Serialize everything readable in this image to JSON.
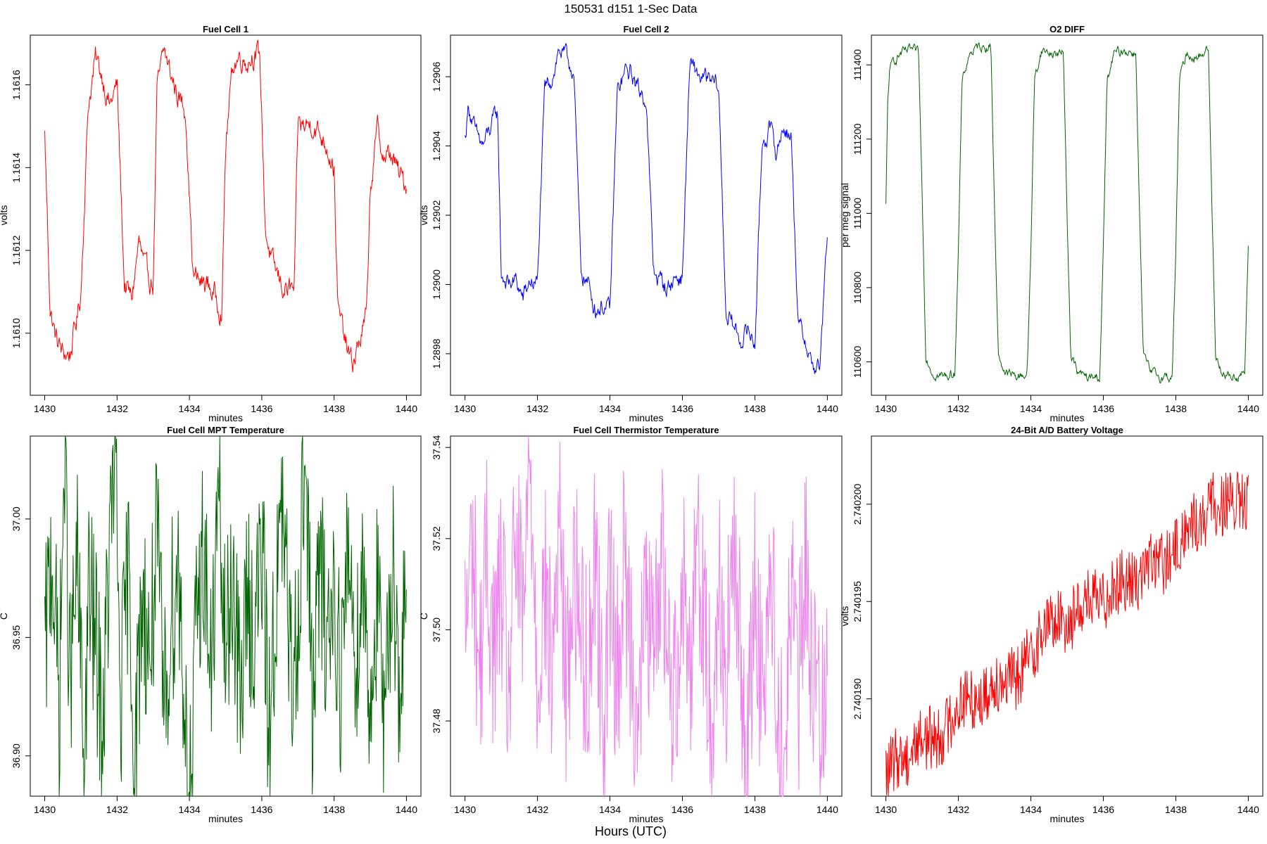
{
  "figure": {
    "title": "150531   d151   1-Sec Data",
    "xlabel": "Hours (UTC)"
  },
  "chart_data": [
    {
      "type": "line",
      "title": "Fuel Cell 1",
      "xlabel": "minutes",
      "ylabel": "volts",
      "color": "#ff0000",
      "xlim": [
        1429.6,
        1440.4
      ],
      "ylim": [
        1.16085,
        1.16172
      ],
      "xticks": [
        1430,
        1432,
        1434,
        1436,
        1438,
        1440
      ],
      "xtick_labels": [
        "1430",
        "1432",
        "1434",
        "1436",
        "1438",
        "1440"
      ],
      "yticks": [
        1.161,
        1.1612,
        1.1614,
        1.1616
      ],
      "ytick_labels": [
        "1.1610",
        "1.1612",
        "1.1614",
        "1.1616"
      ],
      "series": [
        {
          "x": [
            1430.0,
            1430.15,
            1430.3,
            1430.5,
            1430.7,
            1430.9,
            1431.0,
            1431.2,
            1431.4,
            1431.6,
            1431.8,
            1432.0,
            1432.2,
            1432.4,
            1432.6,
            1432.8,
            1433.0,
            1433.1,
            1433.3,
            1433.5,
            1433.7,
            1433.9,
            1434.1,
            1434.3,
            1434.5,
            1434.7,
            1434.9,
            1435.0,
            1435.2,
            1435.4,
            1435.6,
            1435.8,
            1435.95,
            1436.1,
            1436.3,
            1436.6,
            1436.9,
            1437.0,
            1437.2,
            1437.4,
            1437.6,
            1437.8,
            1438.0,
            1438.1,
            1438.3,
            1438.5,
            1438.7,
            1438.9,
            1439.0,
            1439.2,
            1439.4,
            1439.6,
            1439.8,
            1440.0
          ],
          "y": [
            1.16148,
            1.16106,
            1.16099,
            1.16095,
            1.16095,
            1.16104,
            1.1611,
            1.16155,
            1.16166,
            1.16162,
            1.16155,
            1.1616,
            1.16112,
            1.16108,
            1.16122,
            1.16114,
            1.16112,
            1.16158,
            1.16168,
            1.16162,
            1.16157,
            1.16154,
            1.16114,
            1.16112,
            1.16112,
            1.16109,
            1.16106,
            1.16145,
            1.16165,
            1.16167,
            1.16166,
            1.16168,
            1.16166,
            1.16125,
            1.16116,
            1.16111,
            1.1611,
            1.1615,
            1.1615,
            1.16151,
            1.16148,
            1.16146,
            1.1614,
            1.16106,
            1.16098,
            1.16092,
            1.16098,
            1.16104,
            1.16135,
            1.16149,
            1.16142,
            1.16143,
            1.16138,
            1.16136
          ]
        }
      ]
    },
    {
      "type": "line",
      "title": "Fuel Cell 2",
      "xlabel": "minutes",
      "ylabel": "volts",
      "color": "#0000ff",
      "xlim": [
        1429.6,
        1440.4
      ],
      "ylim": [
        1.28968,
        1.29072
      ],
      "xticks": [
        1430,
        1432,
        1434,
        1436,
        1438,
        1440
      ],
      "xtick_labels": [
        "1430",
        "1432",
        "1434",
        "1436",
        "1438",
        "1440"
      ],
      "yticks": [
        1.2898,
        1.29,
        1.2902,
        1.2904,
        1.2906
      ],
      "ytick_labels": [
        "1.2898",
        "1.2900",
        "1.2902",
        "1.2904",
        "1.2906"
      ],
      "series": [
        {
          "x": [
            1430.0,
            1430.1,
            1430.3,
            1430.5,
            1430.7,
            1430.9,
            1431.0,
            1431.2,
            1431.4,
            1431.6,
            1431.8,
            1432.0,
            1432.2,
            1432.4,
            1432.6,
            1432.8,
            1433.0,
            1433.2,
            1433.4,
            1433.6,
            1433.8,
            1434.0,
            1434.2,
            1434.4,
            1434.6,
            1434.8,
            1435.0,
            1435.2,
            1435.4,
            1435.6,
            1435.8,
            1436.0,
            1436.2,
            1436.4,
            1436.6,
            1436.8,
            1437.0,
            1437.2,
            1437.4,
            1437.6,
            1437.8,
            1438.0,
            1438.2,
            1438.4,
            1438.6,
            1438.8,
            1439.0,
            1439.2,
            1439.4,
            1439.6,
            1439.8,
            1440.0
          ],
          "y": [
            1.29042,
            1.29052,
            1.29043,
            1.2904,
            1.29045,
            1.2905,
            1.29003,
            1.29,
            1.29001,
            1.28996,
            1.29001,
            1.29,
            1.29056,
            1.2906,
            1.29068,
            1.29065,
            1.29062,
            1.29004,
            1.29,
            1.28993,
            1.28994,
            1.28992,
            1.29055,
            1.29061,
            1.29061,
            1.29056,
            1.29054,
            1.29004,
            1.29001,
            1.28999,
            1.29002,
            1.29002,
            1.29063,
            1.29061,
            1.29059,
            1.29058,
            1.29057,
            1.28992,
            1.28988,
            1.28984,
            1.28987,
            1.28983,
            1.29041,
            1.29045,
            1.29038,
            1.29046,
            1.29043,
            1.28988,
            1.28984,
            1.28976,
            1.28976,
            1.29015
          ]
        }
      ]
    },
    {
      "type": "line",
      "title": "O2 DIFF",
      "xlabel": "minutes",
      "ylabel": "per meg signal",
      "color": "#006400",
      "xlim": [
        1429.6,
        1440.4
      ],
      "ylim": [
        110510,
        111480
      ],
      "xticks": [
        1430,
        1432,
        1434,
        1436,
        1438,
        1440
      ],
      "xtick_labels": [
        "1430",
        "1432",
        "1434",
        "1436",
        "1438",
        "1440"
      ],
      "yticks": [
        110600,
        110800,
        111000,
        111200,
        111400
      ],
      "ytick_labels": [
        "110600",
        "110800",
        "111000",
        "111200",
        "111400"
      ],
      "series": [
        {
          "x": [
            1430.0,
            1430.05,
            1430.1,
            1430.2,
            1430.4,
            1430.7,
            1430.9,
            1431.0,
            1431.1,
            1431.3,
            1431.6,
            1431.9,
            1432.0,
            1432.1,
            1432.3,
            1432.6,
            1432.9,
            1433.0,
            1433.1,
            1433.3,
            1433.6,
            1433.9,
            1434.0,
            1434.1,
            1434.3,
            1434.6,
            1434.9,
            1435.0,
            1435.1,
            1435.3,
            1435.6,
            1435.9,
            1436.0,
            1436.1,
            1436.3,
            1436.6,
            1436.9,
            1437.0,
            1437.1,
            1437.3,
            1437.6,
            1437.9,
            1438.0,
            1438.1,
            1438.3,
            1438.6,
            1438.9,
            1439.0,
            1439.1,
            1439.3,
            1439.6,
            1439.9,
            1440.0
          ],
          "y": [
            111020,
            111300,
            111380,
            111410,
            111430,
            111440,
            111430,
            111050,
            110620,
            110570,
            110560,
            110570,
            110900,
            111350,
            111430,
            111450,
            111450,
            111000,
            110620,
            110570,
            110560,
            110570,
            110900,
            111360,
            111440,
            111430,
            111430,
            111000,
            110620,
            110570,
            110555,
            110560,
            110900,
            111350,
            111430,
            111440,
            111430,
            111000,
            110620,
            110570,
            110560,
            110560,
            110900,
            111360,
            111430,
            111420,
            111445,
            111000,
            110620,
            110570,
            110560,
            110570,
            110900
          ]
        }
      ]
    },
    {
      "type": "line",
      "title": "Fuel Cell MPT Temperature",
      "xlabel": "minutes",
      "ylabel": "C",
      "color": "#006400",
      "xlim": [
        1429.6,
        1440.4
      ],
      "ylim": [
        36.883,
        37.035
      ],
      "xticks": [
        1430,
        1432,
        1434,
        1436,
        1438,
        1440
      ],
      "xtick_labels": [
        "1430",
        "1432",
        "1434",
        "1436",
        "1438",
        "1440"
      ],
      "yticks": [
        36.9,
        36.95,
        37.0
      ],
      "ytick_labels": [
        "36.90",
        "36.95",
        "37.00"
      ],
      "series": [
        {
          "x": [
            1430.0,
            1430.2,
            1430.4,
            1430.55,
            1430.7,
            1430.9,
            1431.1,
            1431.2,
            1431.4,
            1431.6,
            1431.8,
            1431.95,
            1432.1,
            1432.3,
            1432.5,
            1432.7,
            1432.9,
            1433.1,
            1433.3,
            1433.5,
            1433.7,
            1433.9,
            1434.05,
            1434.2,
            1434.4,
            1434.6,
            1434.8,
            1435.0,
            1435.2,
            1435.4,
            1435.6,
            1435.8,
            1436.0,
            1436.2,
            1436.4,
            1436.6,
            1436.8,
            1437.0,
            1437.2,
            1437.4,
            1437.6,
            1437.8,
            1438.0,
            1438.2,
            1438.4,
            1438.6,
            1438.8,
            1439.0,
            1439.2,
            1439.4,
            1439.6,
            1439.8,
            1440.0
          ],
          "y": [
            36.94,
            36.99,
            36.92,
            37.03,
            36.93,
            36.98,
            36.89,
            36.97,
            36.95,
            36.91,
            36.99,
            37.03,
            36.92,
            36.98,
            36.9,
            36.97,
            36.94,
            36.99,
            36.92,
            36.96,
            36.98,
            36.91,
            36.88,
            36.96,
            36.99,
            36.93,
            37.01,
            36.94,
            36.98,
            36.92,
            36.97,
            36.95,
            36.99,
            36.91,
            36.97,
            37.0,
            36.93,
            36.96,
            37.03,
            36.92,
            36.98,
            36.95,
            36.97,
            36.93,
            36.99,
            36.94,
            36.98,
            36.92,
            36.97,
            36.9,
            36.99,
            36.93,
            36.96
          ]
        }
      ]
    },
    {
      "type": "line",
      "title": "Fuel Cell Thermistor Temperature",
      "xlabel": "minutes",
      "ylabel": "C",
      "color": "#ee82ee",
      "xlim": [
        1429.6,
        1440.4
      ],
      "ylim": [
        37.4635,
        37.5425
      ],
      "xticks": [
        1430,
        1432,
        1434,
        1436,
        1438,
        1440
      ],
      "xtick_labels": [
        "1430",
        "1432",
        "1434",
        "1436",
        "1438",
        "1440"
      ],
      "yticks": [
        37.48,
        37.5,
        37.52,
        37.54
      ],
      "ytick_labels": [
        "37.48",
        "37.50",
        "37.52",
        "37.54"
      ],
      "series": [
        {
          "x": [
            1430.0,
            1430.2,
            1430.4,
            1430.6,
            1430.8,
            1431.0,
            1431.2,
            1431.4,
            1431.6,
            1431.8,
            1432.0,
            1432.2,
            1432.4,
            1432.6,
            1432.8,
            1433.0,
            1433.2,
            1433.4,
            1433.6,
            1433.8,
            1434.0,
            1434.2,
            1434.4,
            1434.6,
            1434.8,
            1435.0,
            1435.2,
            1435.4,
            1435.6,
            1435.8,
            1436.0,
            1436.2,
            1436.4,
            1436.6,
            1436.8,
            1437.0,
            1437.2,
            1437.4,
            1437.6,
            1437.8,
            1438.0,
            1438.2,
            1438.4,
            1438.6,
            1438.8,
            1439.0,
            1439.2,
            1439.4,
            1439.6,
            1439.8,
            1440.0
          ],
          "y": [
            37.498,
            37.52,
            37.49,
            37.515,
            37.495,
            37.51,
            37.485,
            37.52,
            37.5,
            37.539,
            37.49,
            37.51,
            37.49,
            37.525,
            37.485,
            37.515,
            37.5,
            37.49,
            37.52,
            37.478,
            37.51,
            37.49,
            37.515,
            37.495,
            37.48,
            37.51,
            37.49,
            37.52,
            37.495,
            37.485,
            37.515,
            37.49,
            37.525,
            37.5,
            37.48,
            37.51,
            37.49,
            37.515,
            37.495,
            37.47,
            37.51,
            37.485,
            37.515,
            37.49,
            37.467,
            37.51,
            37.485,
            37.515,
            37.49,
            37.48,
            37.5
          ]
        }
      ]
    },
    {
      "type": "line",
      "title": "24-Bit A/D Battery Voltage",
      "xlabel": "minutes",
      "ylabel": "volts",
      "color": "#ff0000",
      "xlim": [
        1429.6,
        1440.4
      ],
      "ylim": [
        2.740185,
        2.7402035
      ],
      "xticks": [
        1430,
        1432,
        1434,
        1436,
        1438,
        1440
      ],
      "xtick_labels": [
        "1430",
        "1432",
        "1434",
        "1436",
        "1438",
        "1440"
      ],
      "yticks": [
        2.74019,
        2.740195,
        2.7402
      ],
      "ytick_labels": [
        "2.740190",
        "2.740195",
        "2.740200"
      ],
      "series": [
        {
          "x": [
            1430.0,
            1430.3,
            1430.6,
            1430.9,
            1431.2,
            1431.5,
            1431.8,
            1432.1,
            1432.4,
            1432.7,
            1433.0,
            1433.3,
            1433.6,
            1433.9,
            1434.2,
            1434.5,
            1434.8,
            1435.1,
            1435.4,
            1435.7,
            1436.0,
            1436.3,
            1436.6,
            1436.9,
            1437.2,
            1437.5,
            1437.8,
            1438.1,
            1438.4,
            1438.7,
            1439.0,
            1439.3,
            1439.6,
            1439.9,
            1440.0
          ],
          "y": [
            2.740186,
            2.740187,
            2.740187,
            2.740188,
            2.740188,
            2.740188,
            2.740189,
            2.74019,
            2.74019,
            2.74019,
            2.740191,
            2.740191,
            2.740191,
            2.740192,
            2.740193,
            2.740194,
            2.740194,
            2.740194,
            2.740195,
            2.740195,
            2.740195,
            2.740196,
            2.740196,
            2.740196,
            2.740197,
            2.740197,
            2.740197,
            2.740198,
            2.740199,
            2.740199,
            2.7402,
            2.7402,
            2.7402,
            2.7402,
            2.7402
          ]
        }
      ]
    }
  ]
}
